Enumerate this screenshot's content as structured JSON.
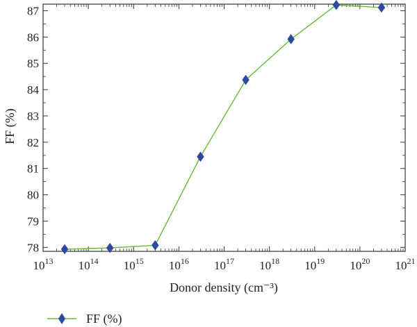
{
  "chart_data": {
    "type": "line",
    "xlabel": "Donor density (cm⁻³)",
    "ylabel": "FF (%)",
    "x_scale": "log",
    "x_ticks": [
      {
        "value": 10000000000000.0,
        "base": "10",
        "exp": "13"
      },
      {
        "value": 100000000000000.0,
        "base": "10",
        "exp": "14"
      },
      {
        "value": 1000000000000000.0,
        "base": "10",
        "exp": "15"
      },
      {
        "value": 1e+16,
        "base": "10",
        "exp": "16"
      },
      {
        "value": 1e+17,
        "base": "10",
        "exp": "17"
      },
      {
        "value": 1e+18,
        "base": "10",
        "exp": "18"
      },
      {
        "value": 1e+19,
        "base": "10",
        "exp": "19"
      },
      {
        "value": 1e+20,
        "base": "10",
        "exp": "20"
      },
      {
        "value": 1e+21,
        "base": "10",
        "exp": "21"
      }
    ],
    "y_ticks": [
      "78",
      "79",
      "80",
      "81",
      "82",
      "83",
      "84",
      "85",
      "86",
      "87"
    ],
    "xlim": [
      10000000000000.0,
      1e+21
    ],
    "ylim": [
      77.85,
      87.25
    ],
    "grid": false,
    "legend_position": "bottom-left",
    "series": [
      {
        "name": "FF (%)",
        "x": [
          30000000000000.0,
          300000000000000.0,
          3000000000000000.0,
          3e+16,
          3e+17,
          3e+18,
          3e+19,
          3e+20
        ],
        "y": [
          77.93,
          77.98,
          78.08,
          81.45,
          84.37,
          85.92,
          87.22,
          87.12
        ],
        "line_color": "#66bb33",
        "marker_color": "#2e4a9e",
        "marker": "diamond"
      }
    ]
  }
}
